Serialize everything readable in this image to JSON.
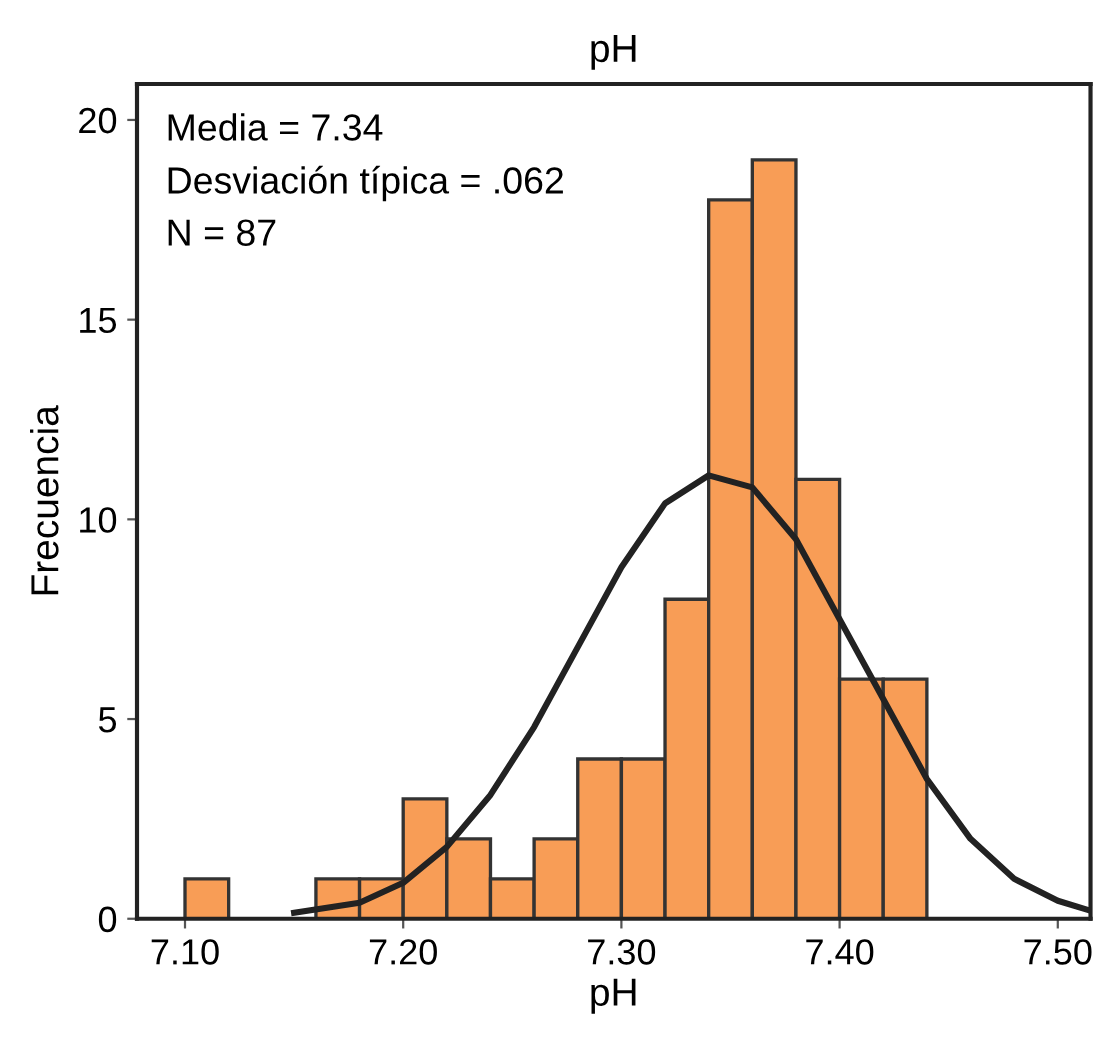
{
  "chart_data": {
    "type": "histogram",
    "title": "pH",
    "xlabel": "pH",
    "ylabel": "Frecuencia",
    "bins": [
      7.1,
      7.12,
      7.14,
      7.16,
      7.18,
      7.2,
      7.22,
      7.24,
      7.26,
      7.28,
      7.3,
      7.32,
      7.34,
      7.36,
      7.38,
      7.4,
      7.42,
      7.44
    ],
    "values": [
      1,
      0,
      0,
      1,
      1,
      3,
      2,
      1,
      2,
      4,
      4,
      8,
      18,
      19,
      11,
      6,
      6
    ],
    "color": "#f89d56",
    "series": [
      {
        "type": "line",
        "color": "#222222",
        "x": [
          7.15,
          7.18,
          7.2,
          7.22,
          7.24,
          7.26,
          7.28,
          7.3,
          7.32,
          7.34,
          7.36,
          7.38,
          7.4,
          7.42,
          7.44,
          7.46,
          7.48,
          7.5,
          7.515
        ],
        "values": [
          0.15,
          0.4,
          0.9,
          1.8,
          3.1,
          4.8,
          6.8,
          8.8,
          10.4,
          11.1,
          10.8,
          9.5,
          7.5,
          5.5,
          3.5,
          2.0,
          1.0,
          0.45,
          0.2
        ]
      }
    ],
    "annotations": [
      "Media = 7.34",
      "Desviación típica = .062",
      "N = 87"
    ],
    "xlim": [
      7.078,
      7.515
    ],
    "xticks": [
      {
        "value": 7.1,
        "label": "7.10"
      },
      {
        "value": 7.2,
        "label": "7.20"
      },
      {
        "value": 7.3,
        "label": "7.30"
      },
      {
        "value": 7.4,
        "label": "7.40"
      },
      {
        "value": 7.5,
        "label": "7.50"
      }
    ],
    "ylim": [
      0,
      20.9
    ],
    "yticks": [
      0,
      5,
      10,
      15,
      20
    ],
    "grid": false,
    "legend": false
  }
}
